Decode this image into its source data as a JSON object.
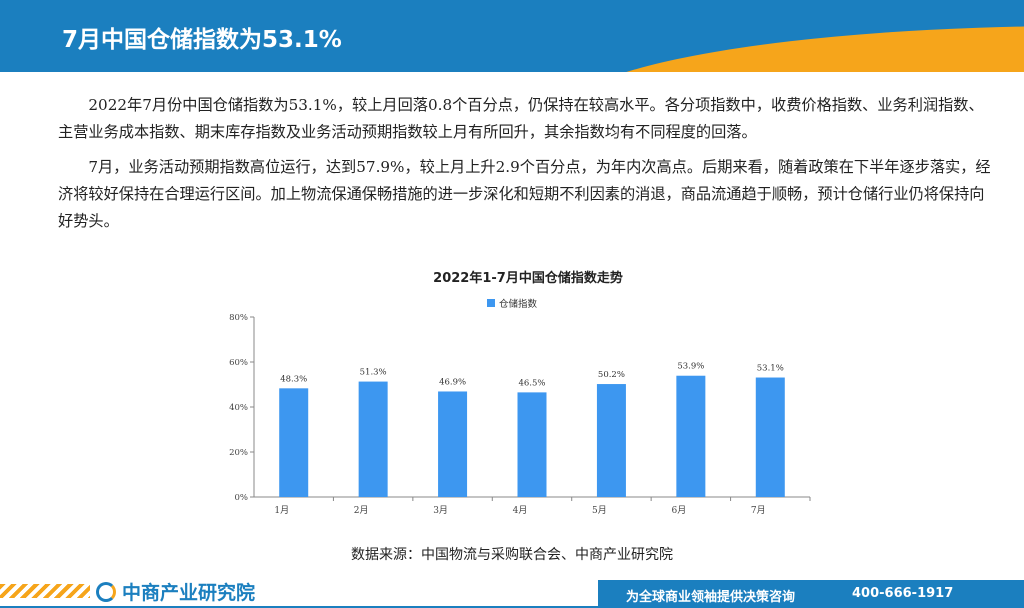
{
  "header": {
    "title": "7月中国仓储指数为53.1%"
  },
  "paragraphs": [
    "2022年7月份中国仓储指数为53.1%，较上月回落0.8个百分点，仍保持在较高水平。各分项指数中，收费价格指数、业务利润指数、主营业务成本指数、期末库存指数及业务活动预期指数较上月有所回升，其余指数均有不同程度的回落。",
    "7月，业务活动预期指数高位运行，达到57.9%，较上月上升2.9个百分点，为年内次高点。后期来看，随着政策在下半年逐步落实，经济将较好保持在合理运行区间。加上物流保通保畅措施的进一步深化和短期不利因素的消退，商品流通趋于顺畅，预计仓储行业仍将保持向好势头。"
  ],
  "chart_data": {
    "type": "bar",
    "title": "2022年1-7月中国仓储指数走势",
    "categories": [
      "1月",
      "2月",
      "3月",
      "4月",
      "5月",
      "6月",
      "7月"
    ],
    "series": [
      {
        "name": "仓储指数",
        "values": [
          48.3,
          51.3,
          46.9,
          46.5,
          50.2,
          53.9,
          53.1
        ],
        "color": "#3d97f0"
      }
    ],
    "value_labels": [
      "48.3%",
      "51.3%",
      "46.9%",
      "46.5%",
      "50.2%",
      "53.9%",
      "53.1%"
    ],
    "yticks": [
      "0%",
      "20%",
      "40%",
      "60%",
      "80%"
    ],
    "ylim": [
      0,
      80
    ],
    "legend": "top-center",
    "grid": false
  },
  "source": "数据来源：中国物流与采购联合会、中商产业研究院",
  "footer": {
    "logo_text": "中商产业研究院",
    "slogan": "为全球商业领袖提供决策咨询",
    "phone": "400-666-1917"
  },
  "colors": {
    "brand_blue": "#1b7fbf",
    "accent_orange": "#f6a51b",
    "bar_blue": "#3d97f0"
  }
}
